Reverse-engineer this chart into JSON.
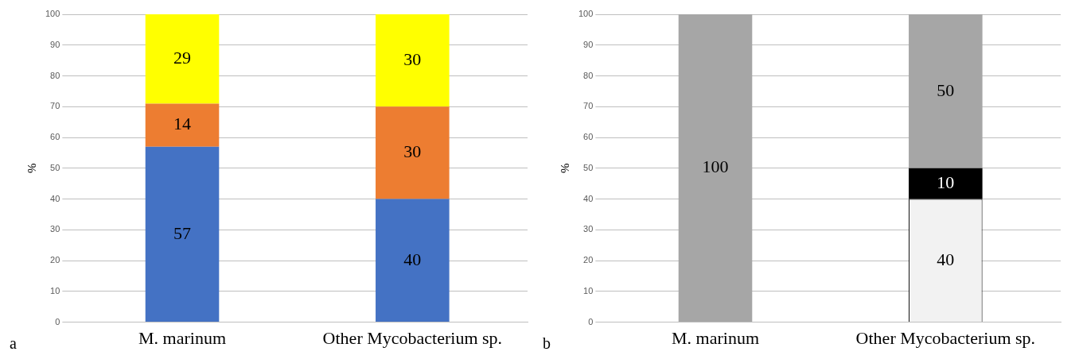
{
  "chart_data": [
    {
      "type": "bar",
      "stacked": true,
      "categories": [
        "M. marinum",
        "Other Mycobacterium sp."
      ],
      "ylabel": "%",
      "ylim": [
        0,
        100
      ],
      "yticks": [
        0,
        10,
        20,
        30,
        40,
        50,
        60,
        70,
        80,
        90,
        100
      ],
      "grid": "y",
      "legend": false,
      "data_labels": true,
      "annotations": [
        "a"
      ],
      "series": [
        {
          "color": "#4472c4",
          "values": [
            57,
            40
          ]
        },
        {
          "color": "#ed7d31",
          "values": [
            14,
            30
          ]
        },
        {
          "color": "#ffff00",
          "values": [
            29,
            30
          ]
        }
      ]
    },
    {
      "type": "bar",
      "stacked": true,
      "categories": [
        "M. marinum",
        "Other Mycobacterium sp."
      ],
      "ylabel": "%",
      "ylim": [
        0,
        100
      ],
      "yticks": [
        0,
        10,
        20,
        30,
        40,
        50,
        60,
        70,
        80,
        90,
        100
      ],
      "grid": "y",
      "legend": false,
      "data_labels": true,
      "annotations": [
        "b"
      ],
      "series": [
        {
          "color": "#f2f2f2",
          "values": [
            null,
            40
          ]
        },
        {
          "color": "#000000",
          "values": [
            null,
            10
          ]
        },
        {
          "color": "#a6a6a6",
          "values": [
            100,
            50
          ]
        }
      ]
    }
  ]
}
